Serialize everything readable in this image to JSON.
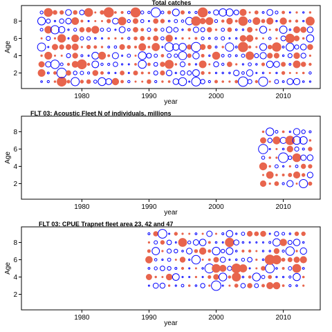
{
  "colors": {
    "positive": "#0000ff",
    "negative": "#e8654d",
    "frame": "#000000"
  },
  "chart_data": [
    {
      "type": "scatter",
      "title": "Total catches",
      "xlabel": "year",
      "ylabel": "Age",
      "xlim": [
        1971,
        2015.5
      ],
      "ylim": [
        0.2,
        9.8
      ],
      "xticks": [
        1980,
        1990,
        2000,
        2010
      ],
      "yticks": [
        2,
        4,
        6,
        8
      ],
      "years": [
        1974,
        2014
      ],
      "ages": [
        1,
        9
      ],
      "grid": false,
      "legend": "none"
    },
    {
      "type": "scatter",
      "title": "FLT 03: Acoustic Fleet   N of individuals, millions",
      "xlabel": "year",
      "ylabel": "Age",
      "xlim": [
        1971,
        2015.5
      ],
      "ylim": [
        0.2,
        9.8
      ],
      "xticks": [
        1980,
        1990,
        2000,
        2010
      ],
      "yticks": [
        2,
        4,
        6,
        8
      ],
      "years": [
        2007,
        2014
      ],
      "ages": [
        2,
        8
      ],
      "grid": false,
      "legend": "none"
    },
    {
      "type": "scatter",
      "title": "FLT 03: CPUE Trapnet fleet area 23, 42 and 47",
      "xlabel": "year",
      "ylabel": "Age",
      "xlim": [
        1971,
        2015.5
      ],
      "ylim": [
        0.2,
        9.8
      ],
      "xticks": [
        1980,
        1990,
        2000,
        2010
      ],
      "yticks": [
        2,
        4,
        6,
        8
      ],
      "years": [
        1990,
        2013
      ],
      "ages": [
        3,
        9
      ],
      "grid": false,
      "legend": "none"
    }
  ]
}
